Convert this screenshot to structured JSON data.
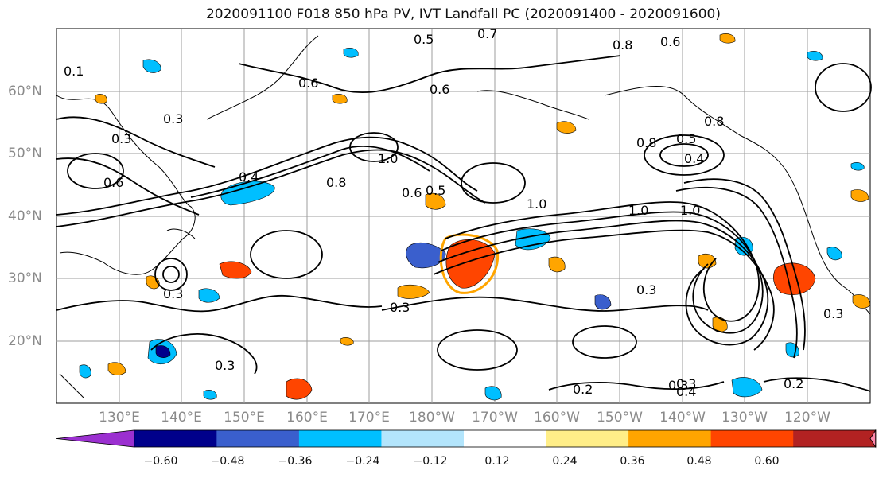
{
  "title": "2020091100 F018 850 hPa PV, IVT Landfall PC (2020091400 - 2020091600)",
  "lat_labels": [
    "60°N",
    "50°N",
    "40°N",
    "30°N",
    "20°N"
  ],
  "lon_labels": [
    "130°E",
    "140°E",
    "150°E",
    "160°E",
    "170°E",
    "180°W",
    "170°W",
    "160°W",
    "150°W",
    "140°W",
    "130°W",
    "120°W"
  ],
  "contour_labels": [
    "0.1",
    "0.5",
    "0.7",
    "0.8",
    "0.6",
    "0.6",
    "0.6",
    "0.3",
    "0.3",
    "0.4",
    "0.8",
    "1.0",
    "0.5",
    "0.6",
    "1.0",
    "1.0",
    "1.0",
    "0.8",
    "0.4",
    "0.8",
    "0.5",
    "0.3",
    "0.3",
    "0.3",
    "0.3",
    "0.3",
    "0.2",
    "0.3",
    "0.4",
    "0.2",
    "0.3",
    "0.6"
  ],
  "colorbar": {
    "colors": [
      "#9b30d0",
      "#00008b",
      "#3a5fcd",
      "#00bfff",
      "#b3e5fc",
      "#ffffff",
      "#ffee88",
      "#ffa500",
      "#ff4500",
      "#b22222",
      "#ff88aa"
    ],
    "ticks": [
      "−0.60",
      "−0.48",
      "−0.36",
      "−0.24",
      "−0.12",
      "0.12",
      "0.24",
      "0.36",
      "0.48",
      "0.60"
    ]
  },
  "colors": {
    "grid": "#9e9e9e",
    "contour": "#000000",
    "positive_strong": "#ff4500",
    "positive": "#ffa500",
    "negative": "#00bfff",
    "negative_strong": "#3a5fcd"
  }
}
